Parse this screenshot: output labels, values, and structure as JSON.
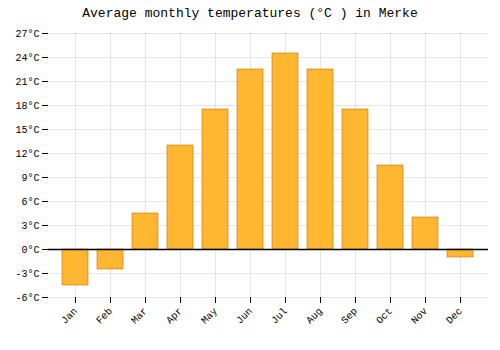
{
  "chart_data": {
    "type": "bar",
    "title": "Average monthly temperatures (°C ) in Merke",
    "categories": [
      "Jan",
      "Feb",
      "Mar",
      "Apr",
      "May",
      "Jun",
      "Jul",
      "Aug",
      "Sep",
      "Oct",
      "Nov",
      "Dec"
    ],
    "values": [
      -4.5,
      -2.5,
      4.5,
      13.0,
      17.5,
      22.5,
      24.5,
      22.5,
      17.5,
      10.5,
      4.0,
      -1.0
    ],
    "color": "#FFB732",
    "ylim": [
      -6,
      27
    ],
    "yticks": [
      {
        "value": -6,
        "label": "-6°C"
      },
      {
        "value": -3,
        "label": "-3°C"
      },
      {
        "value": 0,
        "label": "0°C"
      },
      {
        "value": 3,
        "label": "3°C"
      },
      {
        "value": 6,
        "label": "6°C"
      },
      {
        "value": 9,
        "label": "9°C"
      },
      {
        "value": 12,
        "label": "12°C"
      },
      {
        "value": 15,
        "label": "15°C"
      },
      {
        "value": 18,
        "label": "18°C"
      },
      {
        "value": 21,
        "label": "21°C"
      },
      {
        "value": 24,
        "label": "24°C"
      },
      {
        "value": 27,
        "label": "27°C"
      }
    ],
    "grid": true
  }
}
